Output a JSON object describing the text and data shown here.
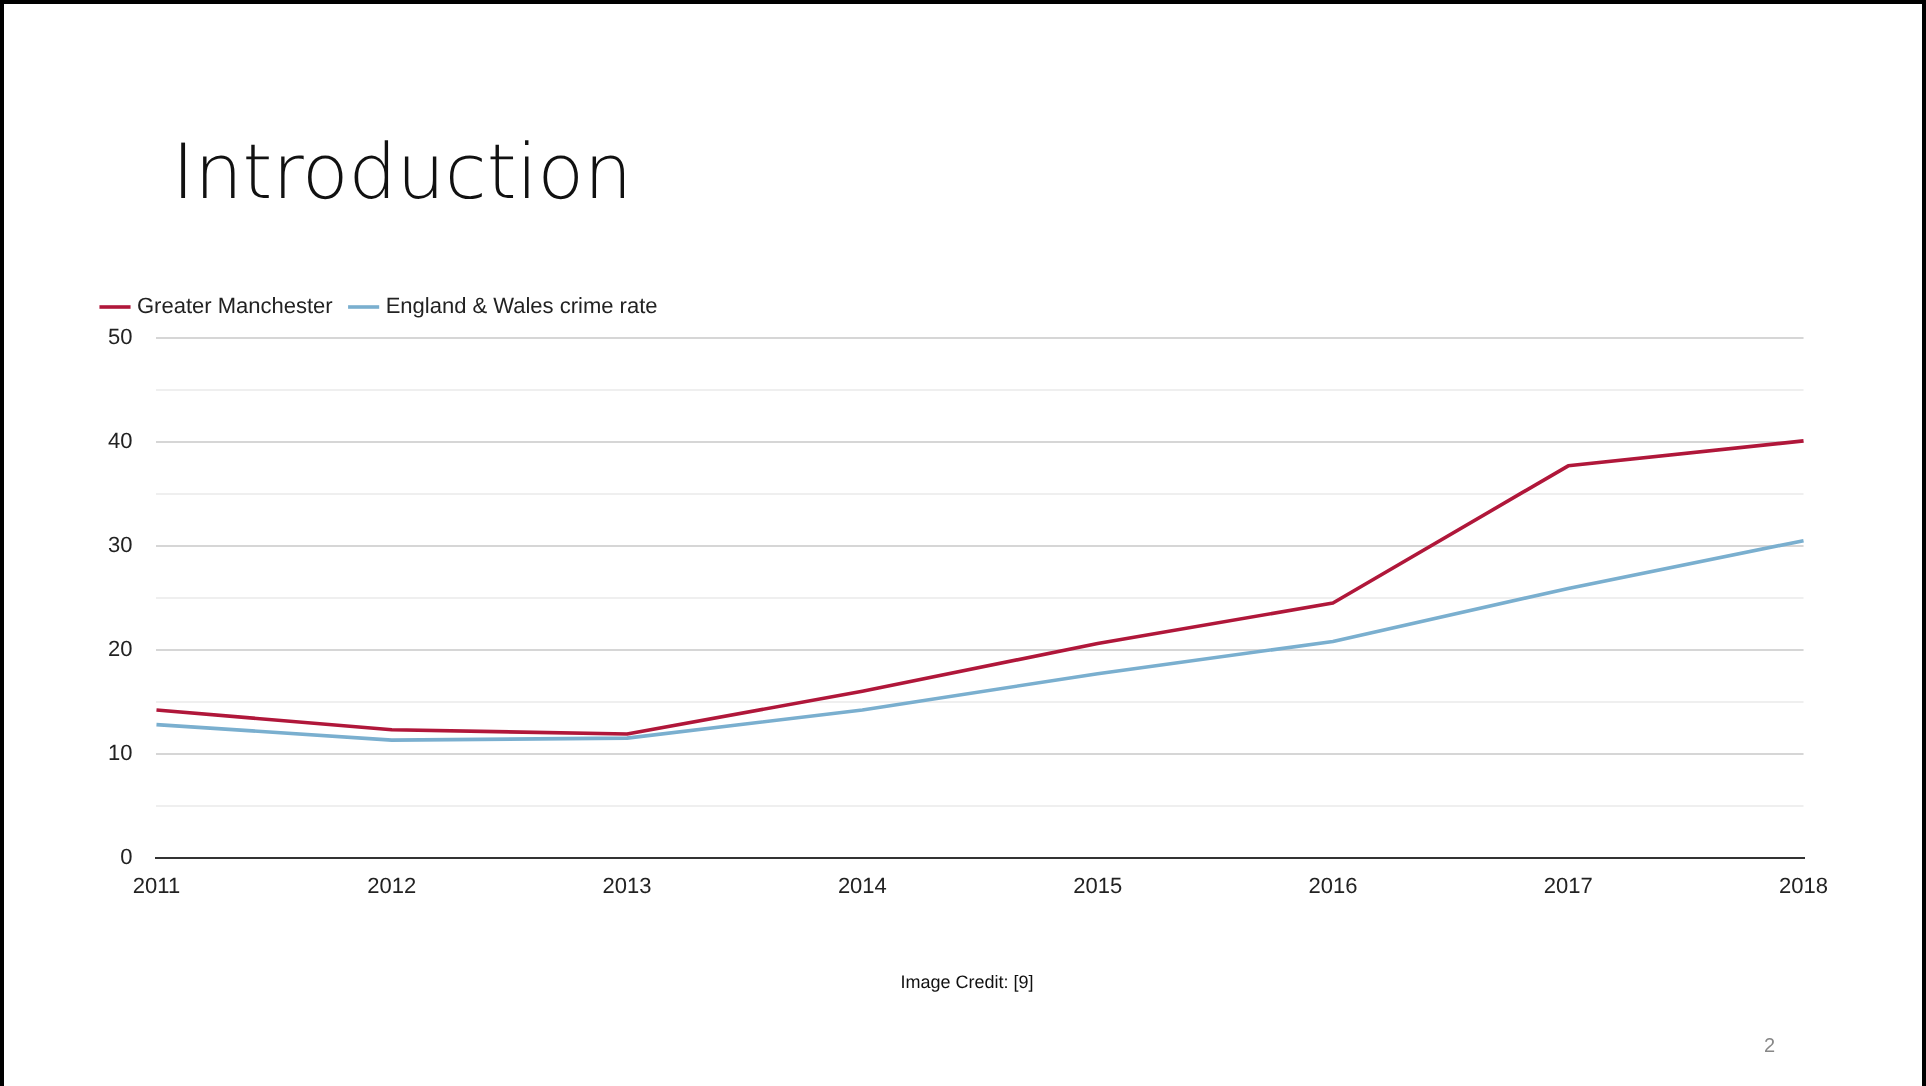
{
  "chart_data": {
    "type": "line",
    "title": "Introduction",
    "categories": [
      "2011",
      "2012",
      "2013",
      "2014",
      "2015",
      "2016",
      "2017",
      "2018"
    ],
    "series": [
      {
        "name": "Greater Manchester",
        "color": "#b0173a",
        "values": [
          14.2,
          12.3,
          11.9,
          16.0,
          20.6,
          24.5,
          37.7,
          40.1
        ]
      },
      {
        "name": "England & Wales crime rate",
        "color": "#7aafcf",
        "values": [
          12.8,
          11.3,
          11.5,
          14.2,
          17.7,
          20.8,
          25.9,
          30.5
        ]
      }
    ],
    "ylim": [
      0,
      50
    ],
    "yticks": [
      0,
      {
        "value": 5,
        "label": null
      },
      10,
      {
        "value": 15,
        "label": null
      },
      20,
      {
        "value": 25,
        "label": null
      },
      30,
      {
        "value": 35,
        "label": null
      },
      40,
      {
        "value": 45,
        "label": null
      },
      50
    ],
    "grid": "y",
    "legend": "top left",
    "marker": "none",
    "line_style": "solid",
    "annotations": [
      "Image Credit: [9]",
      "2"
    ]
  }
}
